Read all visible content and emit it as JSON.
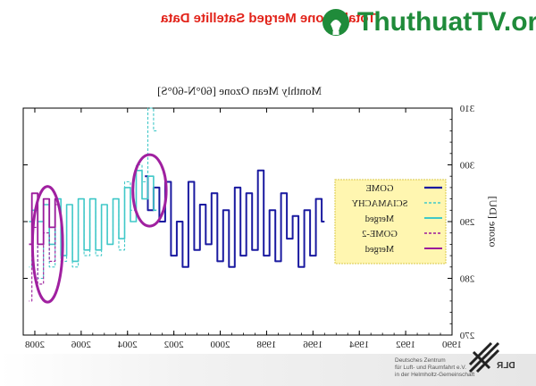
{
  "slide": {
    "title": "Total Ozone Merged Satellite Data"
  },
  "watermark": {
    "text": "ThuthuatTV.org"
  },
  "footer": {
    "org_line1": "Deutsches Zentrum",
    "org_line2": "für Luft- und Raumfahrt e.V.",
    "org_line3": "in der Helmholtz-Gemeinschaft",
    "logo_text": "DLR"
  },
  "colors": {
    "gome": "#1a1aa0",
    "sciamachy": "#40c8c8",
    "gome2": "#9b1a9b",
    "circle": "#a020a0",
    "title": "#e2231a",
    "legend_bg": "#fff6b0"
  },
  "chart_data": {
    "type": "line",
    "title": "Monthly Mean Ozone [60°N-60°S]",
    "xlabel": "",
    "ylabel": "ozone [DU]",
    "x_reversed": true,
    "xlim": [
      1990,
      2008.5
    ],
    "ylim": [
      270,
      310
    ],
    "xticks": [
      2008,
      2006,
      2004,
      2002,
      2000,
      1998,
      1996,
      1994,
      1992,
      1990
    ],
    "yticks": [
      310,
      300,
      290,
      280,
      270
    ],
    "grid": false,
    "legend_position": "right",
    "legend": [
      "GOME",
      "SCIAMACHY",
      "Merged",
      "GOME-2",
      "Merged"
    ],
    "series": [
      {
        "name": "GOME",
        "style": "solid",
        "x": [
          1995.5,
          1995.75,
          1996,
          1996.25,
          1996.5,
          1996.75,
          1997,
          1997.25,
          1997.5,
          1997.75,
          1998,
          1998.25,
          1998.5,
          1998.75,
          1999,
          1999.25,
          1999.5,
          1999.75,
          2000,
          2000.25,
          2000.5,
          2000.75,
          2001,
          2001.25,
          2001.5,
          2001.75,
          2002,
          2002.25,
          2002.5,
          2002.75,
          2003,
          2003.25
        ],
        "y": [
          290,
          294,
          284,
          292,
          282,
          291,
          287,
          295,
          283,
          292,
          284,
          299,
          285,
          295,
          284,
          296,
          282,
          292,
          283,
          295,
          286,
          293,
          285,
          297,
          282,
          290,
          284,
          297,
          290,
          296,
          292,
          298
        ]
      },
      {
        "name": "SCIAMACHY",
        "style": "dashed",
        "x": [
          2002.75,
          2003,
          2003.25,
          2003.5,
          2003.75,
          2004,
          2004.25,
          2004.5,
          2004.75,
          2005,
          2005.25,
          2005.5,
          2005.75,
          2006,
          2006.25,
          2006.5,
          2006.75,
          2007,
          2007.25,
          2007.5,
          2007.75,
          2008,
          2008.25
        ],
        "y": [
          306,
          310,
          297,
          300,
          292,
          297,
          285,
          294,
          286,
          293,
          284,
          294,
          284,
          294,
          282,
          293,
          283,
          294,
          282,
          293,
          280,
          292,
          282
        ]
      },
      {
        "name": "Merged",
        "style": "solid",
        "x": [
          2002.75,
          2003,
          2003.25,
          2003.5,
          2003.75,
          2004,
          2004.25,
          2004.5,
          2004.75,
          2005,
          2005.25,
          2005.5,
          2005.75,
          2006,
          2006.25,
          2006.5,
          2006.75,
          2007,
          2007.25,
          2007.5,
          2007.75,
          2008,
          2008.25
        ],
        "y": [
          292,
          298,
          294,
          299,
          290,
          296,
          287,
          294,
          286,
          293,
          285,
          294,
          285,
          294,
          283,
          293,
          284,
          294,
          286,
          293,
          290,
          292,
          290
        ]
      },
      {
        "name": "GOME-2",
        "style": "dashed",
        "x": [
          2007,
          2007.25,
          2007.5,
          2007.75,
          2008,
          2008.25
        ],
        "y": [
          293,
          283,
          288,
          279,
          289,
          276
        ]
      },
      {
        "name": "Merged",
        "style": "solid",
        "x": [
          2007,
          2007.25,
          2007.5,
          2007.75,
          2008,
          2008.25
        ],
        "y": [
          294,
          289,
          294,
          286,
          295,
          286
        ]
      }
    ],
    "annotations": [
      {
        "type": "ellipse",
        "cx": 2007.45,
        "cy": 286,
        "rx_years": 0.65,
        "ry_du": 10.2
      },
      {
        "type": "ellipse",
        "cx": 2003.05,
        "cy": 295.5,
        "rx_years": 0.72,
        "ry_du": 6.3
      }
    ]
  }
}
